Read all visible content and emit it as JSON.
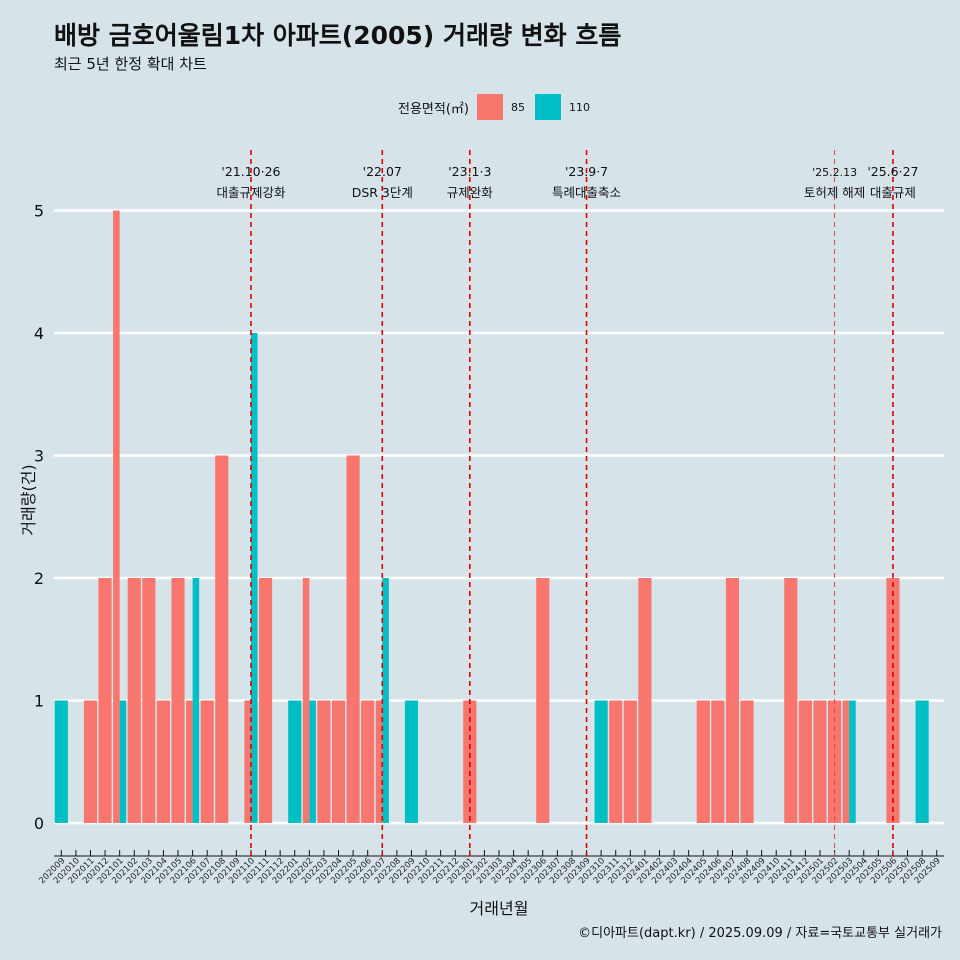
{
  "title": "배방 금호어울림1차 아파트(2005) 거래량 변화 흐름",
  "subtitle": "최근 5년 한정 확대 차트",
  "caption": "©디아파트(dapt.kr) / 2025.09.09 / 자료=국토교통부 실거래가",
  "legend": {
    "title": "전용면적(㎡)",
    "items": [
      {
        "label": "85",
        "color": "#F8766D"
      },
      {
        "label": "110",
        "color": "#00BFC4"
      }
    ]
  },
  "chart_data": {
    "type": "bar",
    "xlabel": "거래년월",
    "ylabel": "거래량(건)",
    "ylim": [
      0,
      5
    ],
    "yticks": [
      0,
      1,
      2,
      3,
      4,
      5
    ],
    "grid": true,
    "legend_position": "top",
    "categories": [
      "202009",
      "202010",
      "202011",
      "202012",
      "202101",
      "202102",
      "202103",
      "202104",
      "202105",
      "202106",
      "202107",
      "202108",
      "202109",
      "202110",
      "202111",
      "202112",
      "202201",
      "202202",
      "202203",
      "202204",
      "202205",
      "202206",
      "202207",
      "202208",
      "202209",
      "202210",
      "202211",
      "202212",
      "202301",
      "202302",
      "202303",
      "202304",
      "202305",
      "202306",
      "202307",
      "202308",
      "202309",
      "202310",
      "202311",
      "202312",
      "202401",
      "202402",
      "202403",
      "202404",
      "202405",
      "202406",
      "202407",
      "202408",
      "202409",
      "202410",
      "202411",
      "202412",
      "202501",
      "202502",
      "202503",
      "202504",
      "202505",
      "202506",
      "202507",
      "202508",
      "202509"
    ],
    "series": [
      {
        "name": "85",
        "color": "#F8766D",
        "values": [
          0,
          0,
          1,
          2,
          5,
          2,
          2,
          1,
          2,
          1,
          1,
          3,
          0,
          1,
          2,
          0,
          0,
          2,
          1,
          1,
          3,
          1,
          1,
          0,
          0,
          0,
          0,
          0,
          1,
          0,
          0,
          0,
          0,
          2,
          0,
          0,
          0,
          0,
          1,
          1,
          2,
          0,
          0,
          0,
          1,
          1,
          2,
          1,
          0,
          0,
          2,
          1,
          1,
          1,
          1,
          0,
          0,
          2,
          0,
          0,
          0
        ]
      },
      {
        "name": "110",
        "color": "#00BFC4",
        "values": [
          1,
          0,
          0,
          0,
          1,
          0,
          0,
          0,
          0,
          2,
          0,
          0,
          0,
          4,
          0,
          0,
          1,
          1,
          0,
          0,
          0,
          0,
          2,
          0,
          1,
          0,
          0,
          0,
          0,
          0,
          0,
          0,
          0,
          0,
          0,
          0,
          0,
          1,
          0,
          0,
          0,
          0,
          0,
          0,
          0,
          0,
          0,
          0,
          0,
          0,
          0,
          0,
          0,
          0,
          1,
          0,
          0,
          0,
          0,
          1,
          0
        ]
      }
    ],
    "annotations": [
      {
        "category": "202110",
        "date": "'21.10·26",
        "label": "대출규제강화",
        "style": "dashed"
      },
      {
        "category": "202207",
        "date": "'22.07",
        "label": "DSR 3단계",
        "style": "dashed"
      },
      {
        "category": "202301",
        "date": "'23.1·3",
        "label": "규제완화",
        "style": "dashed"
      },
      {
        "category": "202309",
        "date": "'23.9·7",
        "label": "특례대출축소",
        "style": "dashed"
      },
      {
        "category": "202502",
        "date": "'25.2.13",
        "label": "토허제 해제",
        "style": "dashed-light"
      },
      {
        "category": "202506",
        "date": "'25.6·27",
        "label": "대출규제",
        "style": "dashed"
      }
    ]
  }
}
